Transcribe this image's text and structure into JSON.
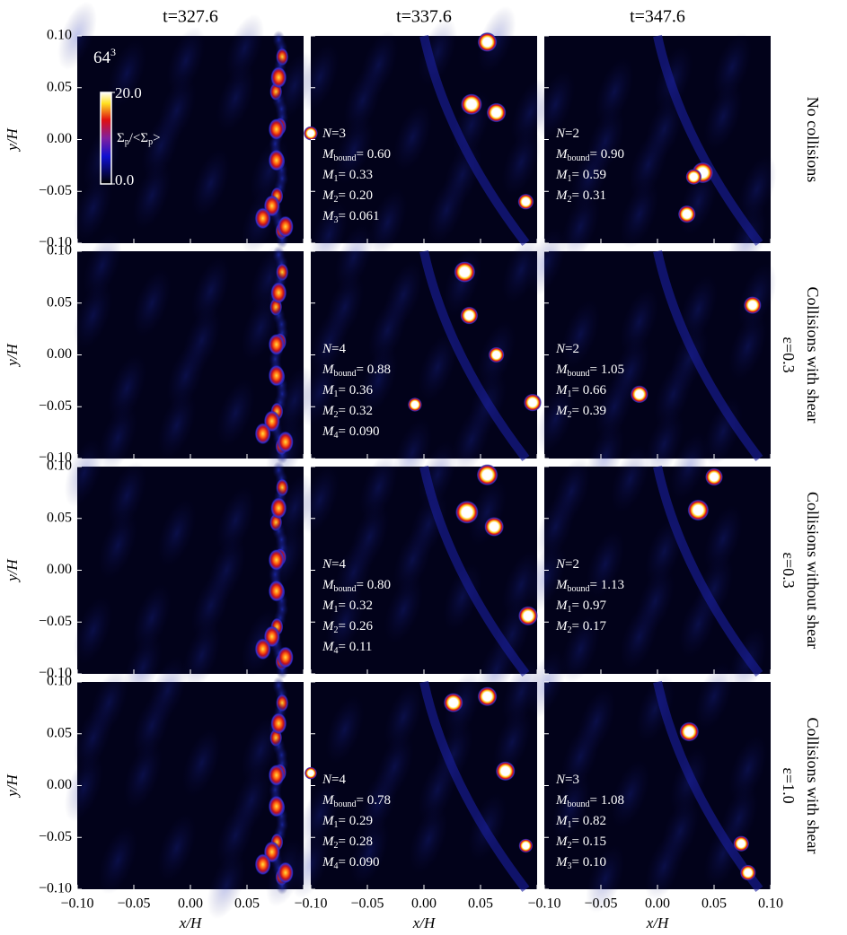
{
  "figure": {
    "columns": [
      "t=327.6",
      "t=337.6",
      "t=347.6"
    ],
    "resolution": "64",
    "resolution_exp": "3",
    "colorbar": {
      "label": [
        "Σ",
        "p",
        "/<Σ",
        "p",
        ">"
      ],
      "max": {
        "value": 20,
        "label": "20.0"
      },
      "min": {
        "value": 0,
        "label": "0.0"
      }
    },
    "xlabel": "x/H",
    "ylabel": "y/H",
    "xlim": [
      -0.1,
      0.1
    ],
    "ylim": [
      -0.1,
      0.1
    ],
    "xticks": [
      {
        "value": -0.1,
        "label": "−0.10"
      },
      {
        "value": -0.05,
        "label": "−0.05"
      },
      {
        "value": 0,
        "label": "0.00"
      },
      {
        "value": 0.05,
        "label": "0.05"
      },
      {
        "value": 0.1,
        "label": "0.10"
      }
    ],
    "yticks": [
      {
        "value": -0.1,
        "label": "−0.10"
      },
      {
        "value": -0.05,
        "label": "−0.05"
      },
      {
        "value": 0,
        "label": "0.00"
      },
      {
        "value": 0.05,
        "label": "0.05"
      },
      {
        "value": 0.1,
        "label": "0.10"
      }
    ],
    "rows": [
      {
        "label": "No collisions",
        "annotations": [
          {
            "N": {
              "symbol": "N",
              "value": "=3"
            },
            "masses": [
              {
                "symbol": "M",
                "sub": "bound",
                "value": "= 0.60"
              },
              {
                "symbol": "M",
                "sub": "1",
                "value": "= 0.33"
              },
              {
                "symbol": "M",
                "sub": "2",
                "value": "= 0.20"
              },
              {
                "symbol": "M",
                "sub": "3",
                "value": "= 0.061"
              }
            ]
          },
          {
            "N": {
              "symbol": "N",
              "value": "=2"
            },
            "masses": [
              {
                "symbol": "M",
                "sub": "bound",
                "value": "= 0.90"
              },
              {
                "symbol": "M",
                "sub": "1",
                "value": "= 0.59"
              },
              {
                "symbol": "M",
                "sub": "2",
                "value": "= 0.31"
              }
            ]
          }
        ]
      },
      {
        "label": "Collisions with shear",
        "epsilon": "ε=0.3",
        "annotations": [
          {
            "N": {
              "symbol": "N",
              "value": "=4"
            },
            "masses": [
              {
                "symbol": "M",
                "sub": "bound",
                "value": "= 0.88"
              },
              {
                "symbol": "M",
                "sub": "1",
                "value": "= 0.36"
              },
              {
                "symbol": "M",
                "sub": "2",
                "value": "= 0.32"
              },
              {
                "symbol": "M",
                "sub": "4",
                "value": "= 0.090"
              }
            ]
          },
          {
            "N": {
              "symbol": "N",
              "value": "=2"
            },
            "masses": [
              {
                "symbol": "M",
                "sub": "bound",
                "value": "= 1.05"
              },
              {
                "symbol": "M",
                "sub": "1",
                "value": "= 0.66"
              },
              {
                "symbol": "M",
                "sub": "2",
                "value": "= 0.39"
              }
            ]
          }
        ]
      },
      {
        "label": "Collisions without shear",
        "epsilon": "ε=0.3",
        "annotations": [
          {
            "N": {
              "symbol": "N",
              "value": "=4"
            },
            "masses": [
              {
                "symbol": "M",
                "sub": "bound",
                "value": "= 0.80"
              },
              {
                "symbol": "M",
                "sub": "1",
                "value": "= 0.32"
              },
              {
                "symbol": "M",
                "sub": "2",
                "value": "= 0.26"
              },
              {
                "symbol": "M",
                "sub": "4",
                "value": "= 0.11"
              }
            ]
          },
          {
            "N": {
              "symbol": "N",
              "value": "=2"
            },
            "masses": [
              {
                "symbol": "M",
                "sub": "bound",
                "value": "= 1.13"
              },
              {
                "symbol": "M",
                "sub": "1",
                "value": "= 0.97"
              },
              {
                "symbol": "M",
                "sub": "2",
                "value": "= 0.17"
              }
            ]
          }
        ]
      },
      {
        "label": "Collisions with shear",
        "epsilon": "ε=1.0",
        "annotations": [
          {
            "N": {
              "symbol": "N",
              "value": "=4"
            },
            "masses": [
              {
                "symbol": "M",
                "sub": "bound",
                "value": "= 0.78"
              },
              {
                "symbol": "M",
                "sub": "1",
                "value": "= 0.29"
              },
              {
                "symbol": "M",
                "sub": "2",
                "value": "= 0.28"
              },
              {
                "symbol": "M",
                "sub": "4",
                "value": "= 0.090"
              }
            ]
          },
          {
            "N": {
              "symbol": "N",
              "value": "=3"
            },
            "masses": [
              {
                "symbol": "M",
                "sub": "bound",
                "value": "= 1.08"
              },
              {
                "symbol": "M",
                "sub": "1",
                "value": "= 0.82"
              },
              {
                "symbol": "M",
                "sub": "2",
                "value": "= 0.15"
              },
              {
                "symbol": "M",
                "sub": "3",
                "value": "= 0.10"
              }
            ]
          }
        ]
      }
    ]
  }
}
